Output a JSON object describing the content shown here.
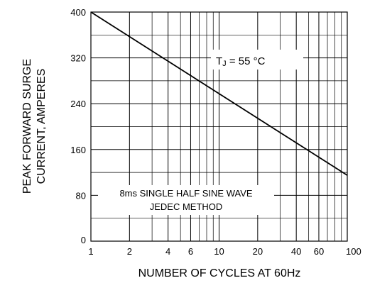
{
  "chart_data": {
    "type": "line",
    "xlabel": "NUMBER OF CYCLES AT 60Hz",
    "ylabel_lines": [
      "PEAK FORWARD SURGE",
      "CURRENT, AMPERES"
    ],
    "x_scale": "log",
    "xlim": [
      1,
      100
    ],
    "ylim": [
      0,
      400
    ],
    "x_ticks": [
      1,
      2,
      4,
      6,
      10,
      20,
      40,
      60,
      100
    ],
    "x_tick_labels": [
      "1",
      "2",
      "4",
      "6",
      "10",
      "20",
      "40",
      "60",
      "100"
    ],
    "x_minor_gridlines": [
      3,
      5,
      7,
      8,
      9,
      30,
      50,
      70,
      80,
      90
    ],
    "y_ticks": [
      0,
      80,
      160,
      240,
      320,
      400
    ],
    "y_tick_labels": [
      "0",
      "80",
      "160",
      "240",
      "320",
      "400"
    ],
    "y_minor_gridlines": [
      40,
      120,
      200,
      280,
      360
    ],
    "grid": true,
    "series": [
      {
        "x": [
          1,
          100
        ],
        "y": [
          400,
          115
        ]
      }
    ],
    "annotation_tj": {
      "prefix": "T",
      "subscript": "J",
      "suffix": " = 55 °C"
    },
    "annotation_box_lines": [
      "8ms SINGLE HALF SINE WAVE",
      "JEDEC METHOD"
    ],
    "colors": {
      "line": "#000000",
      "grid": "#000000",
      "background": "#ffffff"
    }
  }
}
